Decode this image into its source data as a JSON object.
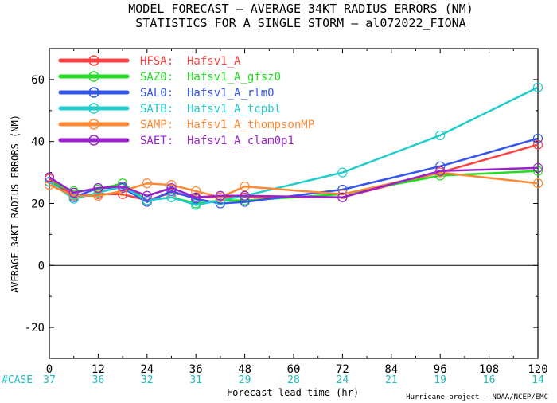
{
  "chart_data": {
    "type": "line",
    "title": "MODEL FORECAST – AVERAGE 34KT RADIUS ERRORS (NM)",
    "subtitle": "STATISTICS FOR A SINGLE STORM – al072022_FIONA",
    "xlabel": "Forecast lead time (hr)",
    "ylabel": "AVERAGE 34KT RADIUS ERRORS (NM)",
    "xlim": [
      0,
      120
    ],
    "ylim": [
      -30,
      70
    ],
    "xticks": [
      0,
      12,
      24,
      36,
      48,
      60,
      72,
      84,
      96,
      108,
      120
    ],
    "yticks": [
      -20,
      0,
      20,
      40,
      60
    ],
    "zero_line": true,
    "legend_position": "top-left",
    "case_label": "#CASE",
    "case_counts": [
      37,
      36,
      32,
      31,
      29,
      28,
      24,
      21,
      19,
      16,
      14
    ],
    "credit": "Hurricane project – NOAA/NCEP/EMC",
    "series": [
      {
        "name": "HFSA:  Hafsv1_A",
        "color": "#ff4040",
        "x": [
          0,
          6,
          12,
          18,
          24,
          30,
          36,
          42,
          48,
          72,
          96,
          120
        ],
        "y": [
          28,
          22.5,
          23,
          23,
          21,
          23.5,
          22,
          22,
          22,
          22,
          30,
          39
        ]
      },
      {
        "name": "SAZ0:  Hafsv1_A_gfsz0",
        "color": "#22dd22",
        "x": [
          0,
          6,
          12,
          18,
          24,
          30,
          36,
          42,
          48,
          72,
          96,
          120
        ],
        "y": [
          27,
          24,
          24.5,
          26.5,
          21,
          22,
          20,
          21,
          21,
          23,
          29,
          30.5
        ]
      },
      {
        "name": "SAL0:  Hafsv1_A_rlm0",
        "color": "#3355ee",
        "x": [
          0,
          6,
          12,
          18,
          24,
          30,
          36,
          42,
          48,
          72,
          96,
          120
        ],
        "y": [
          27,
          22,
          25,
          25,
          20.5,
          24,
          21.5,
          20,
          20.5,
          24.5,
          32,
          41
        ]
      },
      {
        "name": "SATB:  Hafsv1_A_tcpbl",
        "color": "#22cccc",
        "x": [
          0,
          6,
          12,
          18,
          24,
          30,
          36,
          42,
          48,
          72,
          96,
          120
        ],
        "y": [
          27,
          21.5,
          23.5,
          25.5,
          21,
          22,
          19.5,
          21,
          22.5,
          30,
          42,
          57.5
        ]
      },
      {
        "name": "SAMP:  Hafsv1_A_thompsonMP",
        "color": "#ff8833",
        "x": [
          0,
          6,
          12,
          18,
          24,
          30,
          36,
          42,
          48,
          72,
          96,
          120
        ],
        "y": [
          26,
          22.5,
          22.5,
          24,
          26.5,
          26,
          24,
          22,
          25.5,
          23,
          30,
          26.5
        ]
      },
      {
        "name": "SAET:  Hafsv1_A_clam0p1",
        "color": "#9922cc",
        "x": [
          0,
          6,
          12,
          18,
          24,
          30,
          36,
          42,
          48,
          72,
          96,
          120
        ],
        "y": [
          28.5,
          23.5,
          25,
          25.5,
          22.5,
          25,
          22,
          22.5,
          22.5,
          22,
          30.5,
          31.5
        ]
      }
    ]
  }
}
